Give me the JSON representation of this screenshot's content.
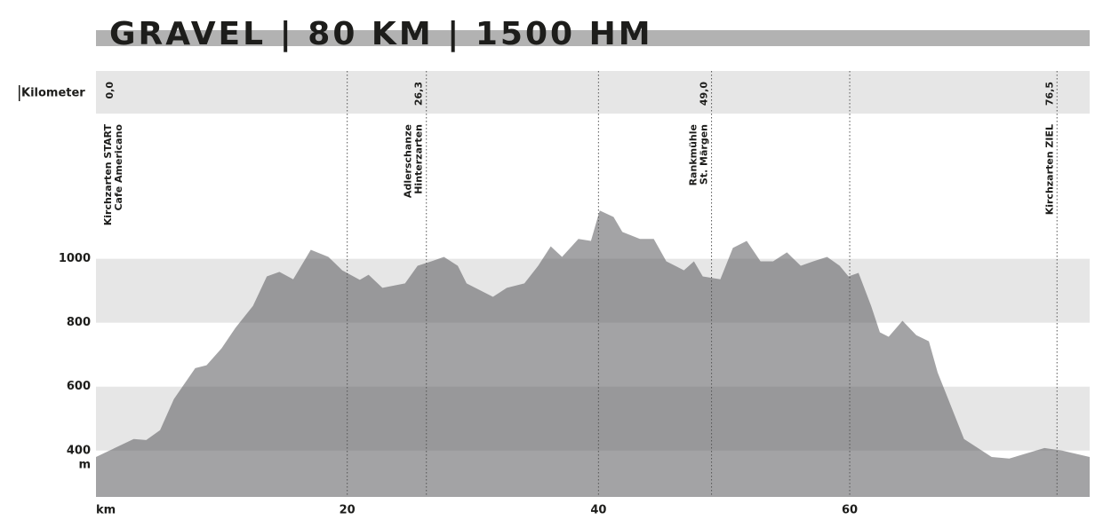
{
  "chart_data": {
    "type": "area",
    "title": "GRAVEL | 80 KM | 1500 HM",
    "row_label": "Kilometer",
    "y_unit": "m",
    "color": "#58585b",
    "x": [
      0,
      3.0,
      4.0,
      5.1,
      6.2,
      7.9,
      8.8,
      10.0,
      11.1,
      12.5,
      13.6,
      14.6,
      15.7,
      17.1,
      18.5,
      19.6,
      21.0,
      21.7,
      22.8,
      24.6,
      25.6,
      26.7,
      27.7,
      28.8,
      29.5,
      31.6,
      32.7,
      34.1,
      35.2,
      36.2,
      37.1,
      38.4,
      39.4,
      40.1,
      41.2,
      41.9,
      43.3,
      44.4,
      45.4,
      46.8,
      47.6,
      48.3,
      49.7,
      50.7,
      51.8,
      52.9,
      53.9,
      55.0,
      56.1,
      57.1,
      58.2,
      59.2,
      59.9,
      60.7,
      61.7,
      62.4,
      63.1,
      64.2,
      65.3,
      66.3,
      67.0,
      67.7,
      69.1,
      70.2,
      71.3,
      72.7,
      75.5,
      76.9,
      79.1
    ],
    "values": [
      380,
      436,
      433,
      464,
      561,
      658,
      667,
      720,
      784,
      853,
      945,
      959,
      936,
      1028,
      1006,
      964,
      934,
      950,
      909,
      923,
      978,
      992,
      1006,
      978,
      923,
      881,
      909,
      923,
      978,
      1039,
      1006,
      1062,
      1056,
      1151,
      1131,
      1084,
      1062,
      1062,
      992,
      964,
      992,
      945,
      936,
      1034,
      1056,
      992,
      992,
      1020,
      978,
      992,
      1006,
      978,
      945,
      956,
      853,
      770,
      756,
      806,
      761,
      742,
      644,
      575,
      436,
      408,
      380,
      375,
      408,
      400,
      380
    ],
    "xlim": [
      0,
      79.1
    ],
    "ylim": [
      255,
      1160
    ],
    "xticks": [
      {
        "value": 0,
        "label": "km"
      },
      20,
      40,
      60
    ],
    "yticks": [
      400,
      600,
      800,
      1000
    ],
    "markers": [
      {
        "value": 0,
        "label": "0,0",
        "place": [
          "Kirchzarten START",
          "Cafe Americano"
        ]
      },
      {
        "value": 26.3,
        "label": "26,3",
        "place": [
          "Adlerschanze",
          "Hinterzarten"
        ]
      },
      {
        "value": 49,
        "label": "49,0",
        "place": [
          "Rankmühle",
          "St. Märgen"
        ]
      },
      {
        "value": 76.5,
        "label": "76,5",
        "place": [
          "Kirchzarten ZIEL"
        ]
      }
    ]
  }
}
